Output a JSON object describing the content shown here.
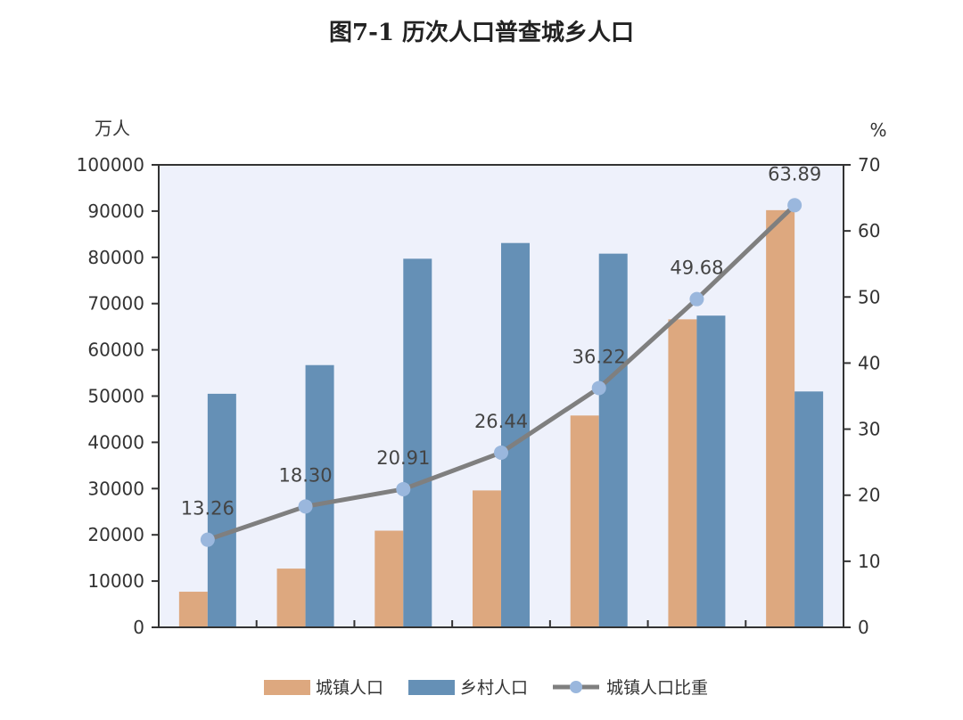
{
  "chart_data": {
    "type": "bar",
    "title": "图7-1 历次人口普查城乡人口",
    "y_left_unit": "万人",
    "y_right_unit": "%",
    "y_left_range": [
      0,
      100000
    ],
    "y_right_range": [
      0,
      70
    ],
    "y_left_ticks": [
      "0",
      "10000",
      "20000",
      "30000",
      "40000",
      "50000",
      "60000",
      "70000",
      "80000",
      "90000",
      "100000"
    ],
    "y_right_ticks": [
      "0",
      "10",
      "20",
      "30",
      "40",
      "50",
      "60",
      "70"
    ],
    "categories": [
      "",
      "",
      "",
      "",
      "",
      "",
      ""
    ],
    "series": [
      {
        "name": "城镇人口",
        "type": "bar",
        "axis": "left",
        "color": "#dda87f",
        "values": [
          7700,
          12700,
          20900,
          29600,
          45800,
          66600,
          90200
        ]
      },
      {
        "name": "乡村人口",
        "type": "bar",
        "axis": "left",
        "color": "#6590b6",
        "values": [
          50500,
          56700,
          79700,
          83100,
          80800,
          67400,
          51000
        ]
      },
      {
        "name": "城镇人口比重",
        "type": "line",
        "axis": "right",
        "color": "#7f7f7f",
        "marker_color": "#9ab7dd",
        "values": [
          13.26,
          18.3,
          20.91,
          26.44,
          36.22,
          49.68,
          63.89
        ],
        "labels": [
          "13.26",
          "18.30",
          "20.91",
          "26.44",
          "36.22",
          "49.68",
          "63.89"
        ]
      }
    ],
    "plot_background": "#eef1fb",
    "grid": false,
    "legend_position": "bottom-center"
  }
}
